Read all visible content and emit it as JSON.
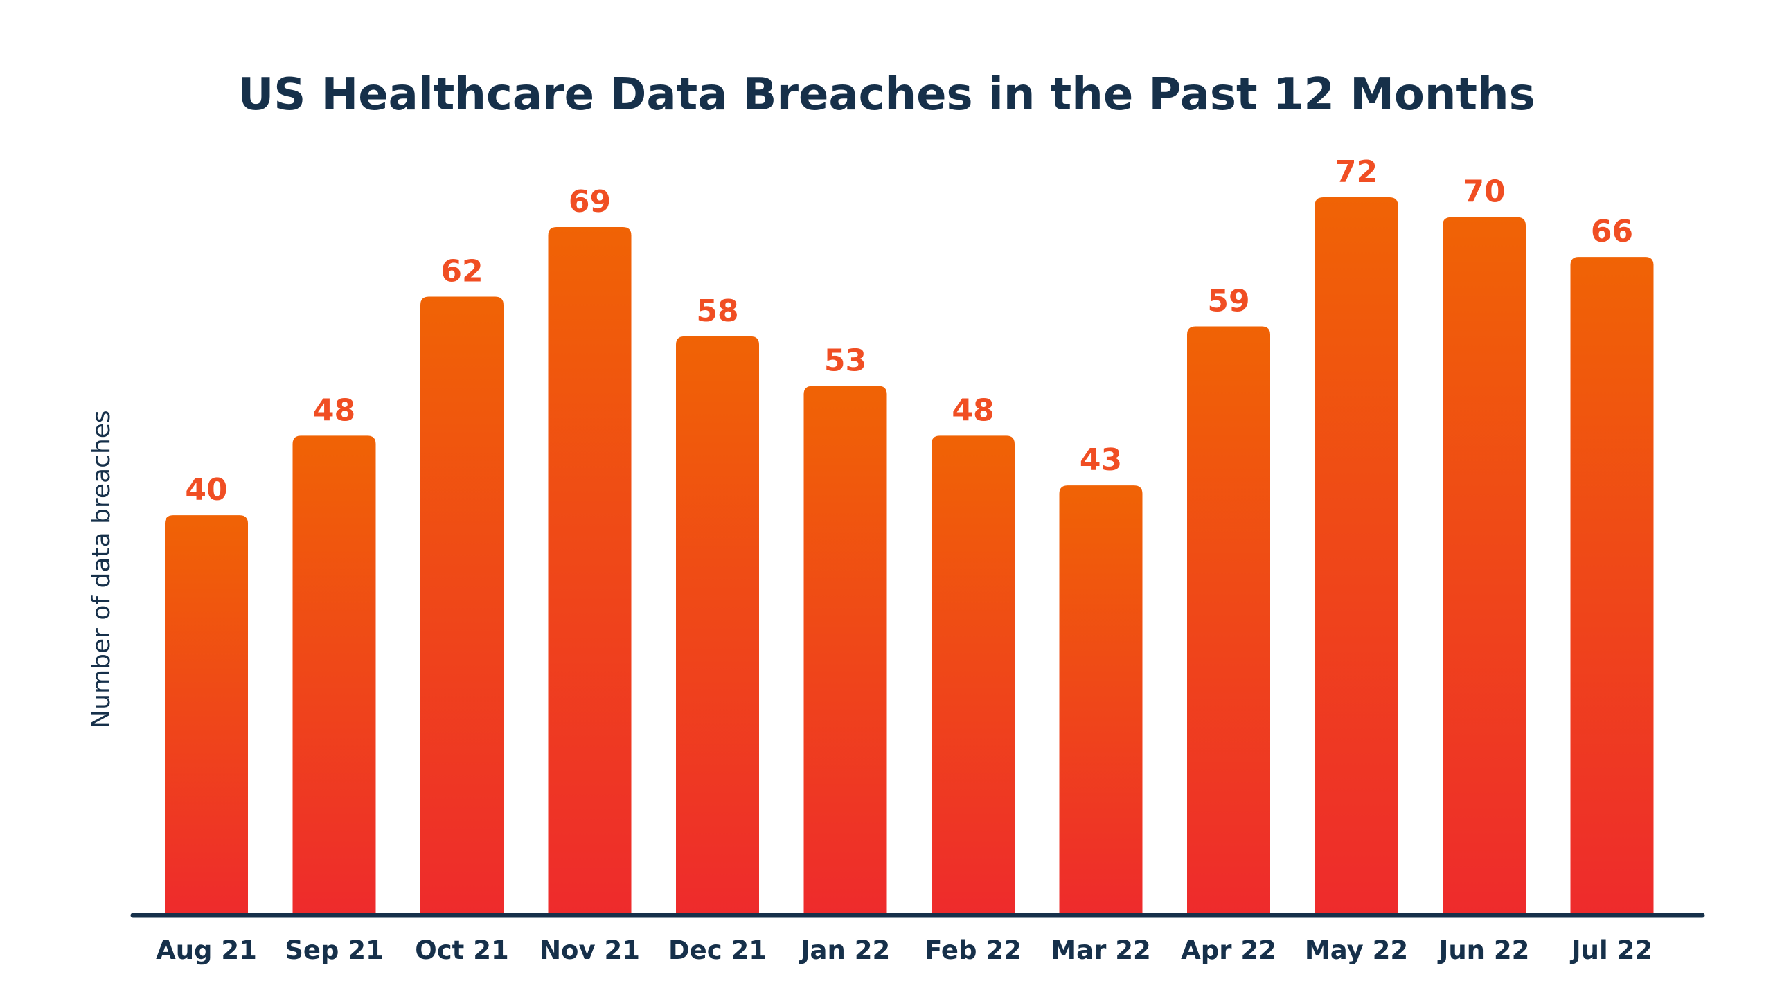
{
  "chart_data": {
    "type": "bar",
    "title": "US Healthcare Data Breaches in the Past 12 Months",
    "xlabel": "",
    "ylabel": "Number of data breaches",
    "categories": [
      "Aug 21",
      "Sep 21",
      "Oct 21",
      "Nov 21",
      "Dec 21",
      "Jan 22",
      "Feb 22",
      "Mar 22",
      "Apr 22",
      "May 22",
      "Jun 22",
      "Jul 22"
    ],
    "values": [
      40,
      48,
      62,
      69,
      58,
      53,
      48,
      43,
      59,
      72,
      70,
      66
    ],
    "ylim": [
      0,
      72
    ],
    "grid": false,
    "data_labels": true,
    "colors": {
      "bar_top": "#f06305",
      "bar_bottom": "#ee2b2c",
      "value_label": "#f04e23",
      "text": "#16304a",
      "axis": "#16304a"
    }
  }
}
